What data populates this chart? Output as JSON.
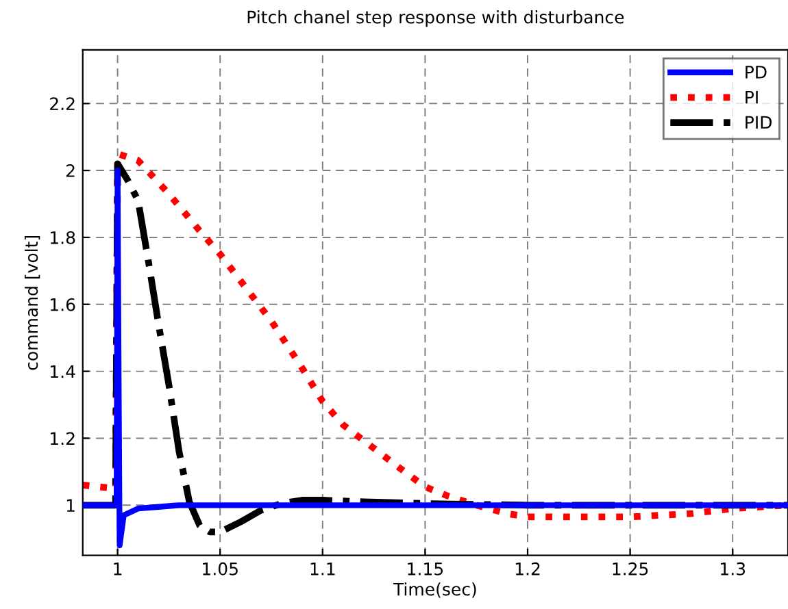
{
  "chart_data": {
    "type": "line",
    "title": "Pitch chanel step response with disturbance",
    "xlabel": "Time(sec)",
    "ylabel": "command [volt]",
    "xlim": [
      0.983,
      1.327
    ],
    "ylim": [
      0.85,
      2.36
    ],
    "xticks": [
      1,
      1.05,
      1.1,
      1.15,
      1.2,
      1.25,
      1.3
    ],
    "yticks": [
      1,
      1.2,
      1.4,
      1.6,
      1.8,
      2,
      2.2
    ],
    "grid": true,
    "legend": "top right",
    "marker": "none",
    "series": [
      {
        "name": "PD",
        "color": "#0000ff",
        "line_style": "solid",
        "x": [
          0.983,
          0.9995,
          1.0,
          1.0005,
          1.001,
          1.003,
          1.01,
          1.02,
          1.03,
          1.327
        ],
        "values": [
          1.0,
          1.0,
          2.0,
          1.4,
          0.88,
          0.97,
          0.99,
          0.995,
          1.0,
          1.0
        ]
      },
      {
        "name": "PI",
        "color": "#ff0000",
        "line_style": "dotted",
        "x": [
          0.983,
          0.999,
          1.0,
          1.01,
          1.025,
          1.04,
          1.05,
          1.06,
          1.075,
          1.09,
          1.1,
          1.11,
          1.125,
          1.14,
          1.15,
          1.16,
          1.175,
          1.19,
          1.2,
          1.25,
          1.28,
          1.3,
          1.327
        ],
        "values": [
          1.06,
          1.05,
          2.05,
          2.03,
          1.93,
          1.82,
          1.75,
          1.67,
          1.55,
          1.41,
          1.31,
          1.24,
          1.17,
          1.1,
          1.055,
          1.03,
          1.0,
          0.975,
          0.965,
          0.965,
          0.975,
          0.99,
          1.0
        ]
      },
      {
        "name": "PID",
        "color": "#000000",
        "line_style": "dashdot",
        "x": [
          0.983,
          0.999,
          1.0,
          1.005,
          1.01,
          1.015,
          1.02,
          1.025,
          1.03,
          1.035,
          1.04,
          1.045,
          1.05,
          1.06,
          1.07,
          1.08,
          1.09,
          1.1,
          1.12,
          1.15,
          1.2,
          1.327
        ],
        "values": [
          1.0,
          1.0,
          2.02,
          1.97,
          1.91,
          1.73,
          1.54,
          1.36,
          1.16,
          1.01,
          0.94,
          0.92,
          0.92,
          0.95,
          0.985,
          1.005,
          1.015,
          1.015,
          1.01,
          1.005,
          1.0,
          1.0
        ]
      }
    ]
  }
}
